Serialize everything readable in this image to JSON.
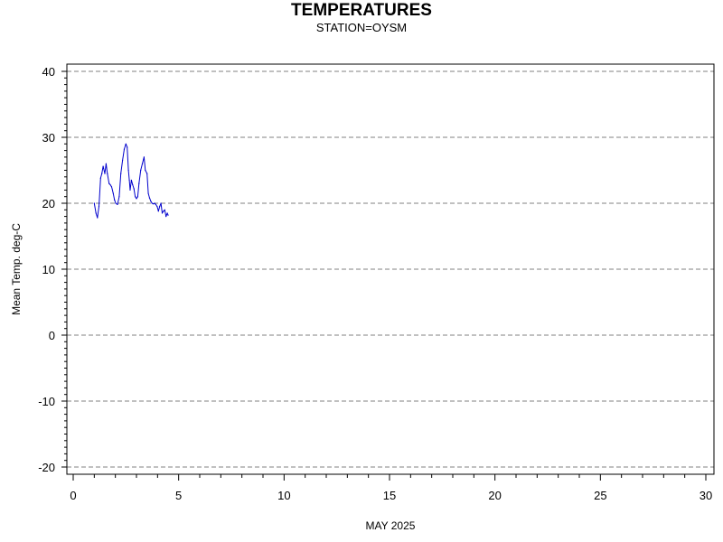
{
  "chart_data": {
    "type": "line",
    "title": "TEMPERATURES",
    "subtitle": "STATION=OYSM",
    "xlabel": "MAY 2025",
    "ylabel": "Mean Temp. deg-C",
    "xlim": [
      0,
      30
    ],
    "ylim": [
      -20,
      40
    ],
    "x_ticks": [
      0,
      5,
      10,
      15,
      20,
      25,
      30
    ],
    "y_ticks": [
      -20,
      -10,
      0,
      10,
      20,
      30,
      40
    ],
    "x_minor_step": 1,
    "y_minor_step": 1,
    "grid": "horizontal-dashed",
    "series": [
      {
        "color": "#0000cc",
        "x": [
          1.0,
          1.08,
          1.15,
          1.22,
          1.3,
          1.36,
          1.42,
          1.5,
          1.56,
          1.62,
          1.7,
          1.76,
          1.82,
          1.9,
          1.96,
          2.02,
          2.1,
          2.18,
          2.26,
          2.34,
          2.42,
          2.5,
          2.56,
          2.62,
          2.66,
          2.7,
          2.76,
          2.82,
          2.88,
          2.94,
          3.0,
          3.06,
          3.12,
          3.2,
          3.28,
          3.36,
          3.42,
          3.5,
          3.56,
          3.62,
          3.68,
          3.74,
          3.8,
          3.86,
          3.92,
          3.98,
          4.04,
          4.1,
          4.16,
          4.22,
          4.28,
          4.34,
          4.4,
          4.46,
          4.5
        ],
        "y": [
          20.0,
          18.5,
          17.8,
          19.5,
          23.8,
          24.5,
          25.6,
          24.5,
          26.0,
          24.5,
          23.0,
          22.8,
          22.5,
          21.5,
          20.5,
          20.0,
          19.8,
          21.0,
          24.5,
          26.5,
          28.2,
          29.0,
          28.5,
          25.0,
          23.5,
          22.0,
          23.5,
          22.8,
          22.2,
          21.0,
          20.7,
          21.0,
          23.0,
          25.0,
          26.0,
          27.0,
          25.0,
          24.5,
          21.5,
          20.8,
          20.3,
          20.0,
          19.9,
          20.0,
          19.8,
          19.5,
          18.8,
          19.5,
          20.0,
          18.5,
          18.8,
          19.0,
          18.0,
          18.5,
          18.2
        ]
      }
    ]
  }
}
